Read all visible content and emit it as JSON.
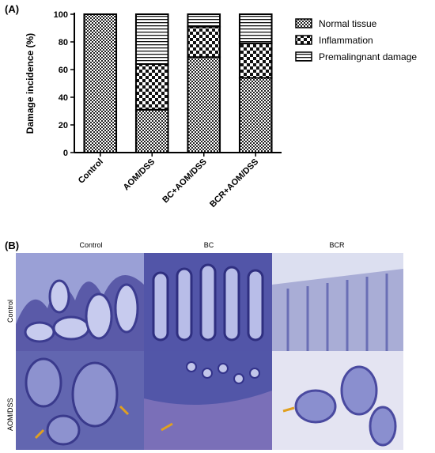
{
  "panel_a_label": "(A)",
  "panel_b_label": "(B)",
  "chart_data": {
    "type": "bar",
    "stacked": true,
    "title": "",
    "xlabel": "",
    "ylabel": "Damage incidence (%)",
    "ylim": [
      0,
      100
    ],
    "yticks": [
      "0",
      "20",
      "40",
      "60",
      "80",
      "100"
    ],
    "categories": [
      "Control",
      "AOM/DSS",
      "BC+AOM/DSS",
      "BCR+AOM/DSS"
    ],
    "series": [
      {
        "name": "Normal tissue",
        "values": [
          100,
          31,
          69,
          54
        ],
        "pattern": "dense-check"
      },
      {
        "name": "Inflammation",
        "values": [
          0,
          33,
          22,
          25
        ],
        "pattern": "check"
      },
      {
        "name": "Premalingnant damage",
        "values": [
          0,
          36,
          9,
          21
        ],
        "pattern": "hlines"
      }
    ],
    "legend_position": "right",
    "grid": false
  },
  "micrographs": {
    "column_labels": [
      "Control",
      "BC",
      "BCR"
    ],
    "row_labels": [
      "Control",
      "AOM/DSS"
    ],
    "colors": {
      "tissue_dark": "#4a4aa0",
      "tissue_mid": "#7f86c8",
      "background_light": "#c9cde8",
      "arrow": "#e0a020"
    }
  }
}
